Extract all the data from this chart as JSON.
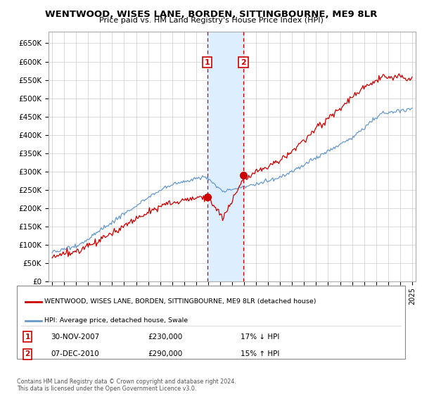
{
  "title": "WENTWOOD, WISES LANE, BORDEN, SITTINGBOURNE, ME9 8LR",
  "subtitle": "Price paid vs. HM Land Registry's House Price Index (HPI)",
  "ylim": [
    0,
    682000
  ],
  "yticks": [
    0,
    50000,
    100000,
    150000,
    200000,
    250000,
    300000,
    350000,
    400000,
    450000,
    500000,
    550000,
    600000,
    650000
  ],
  "ytick_labels": [
    "£0",
    "£50K",
    "£100K",
    "£150K",
    "£200K",
    "£250K",
    "£300K",
    "£350K",
    "£400K",
    "£450K",
    "£500K",
    "£550K",
    "£600K",
    "£650K"
  ],
  "sale1_date": 2007.92,
  "sale1_price": 230000,
  "sale1_label": "1",
  "sale1_date_str": "30-NOV-2007",
  "sale1_price_str": "£230,000",
  "sale1_pct": "17% ↓ HPI",
  "sale2_date": 2010.93,
  "sale2_price": 290000,
  "sale2_label": "2",
  "sale2_date_str": "07-DEC-2010",
  "sale2_price_str": "£290,000",
  "sale2_pct": "15% ↑ HPI",
  "legend_line1": "WENTWOOD, WISES LANE, BORDEN, SITTINGBOURNE, ME9 8LR (detached house)",
  "legend_line2": "HPI: Average price, detached house, Swale",
  "footnote": "Contains HM Land Registry data © Crown copyright and database right 2024.\nThis data is licensed under the Open Government Licence v3.0.",
  "red_color": "#cc0000",
  "blue_color": "#6699cc",
  "shade_color": "#ddeeff",
  "background_color": "#ffffff",
  "grid_color": "#cccccc"
}
